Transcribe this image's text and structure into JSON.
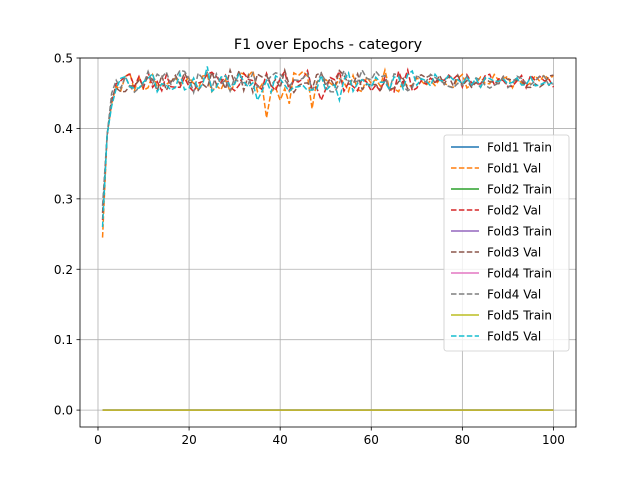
{
  "chart_data": {
    "type": "line",
    "title": "F1 over Epochs - category",
    "xlabel": "",
    "ylabel": "",
    "xlim": [
      -3.95,
      104.95
    ],
    "ylim": [
      -0.024,
      0.5
    ],
    "xticks": [
      0,
      20,
      40,
      60,
      80,
      100
    ],
    "yticks": [
      0.0,
      0.1,
      0.2,
      0.3,
      0.4,
      0.5
    ],
    "xtick_labels": [
      "0",
      "20",
      "40",
      "60",
      "80",
      "100"
    ],
    "ytick_labels": [
      "0.0",
      "0.1",
      "0.2",
      "0.3",
      "0.4",
      "0.5"
    ],
    "grid": true,
    "legend_position": "center-right",
    "series": [
      {
        "name": "Fold1 Train",
        "color": "#1f77b4",
        "dash": "solid",
        "kind": "train",
        "value": 0.0
      },
      {
        "name": "Fold1 Val",
        "color": "#ff7f0e",
        "dash": "dashed",
        "kind": "val",
        "seed": 11,
        "start": 0.245,
        "dips": [
          [
            37,
            0.415
          ],
          [
            40,
            0.44
          ],
          [
            42,
            0.435
          ],
          [
            47,
            0.428
          ]
        ]
      },
      {
        "name": "Fold2 Train",
        "color": "#2ca02c",
        "dash": "solid",
        "kind": "train",
        "value": 0.0
      },
      {
        "name": "Fold2 Val",
        "color": "#d62728",
        "dash": "dashed",
        "kind": "val",
        "seed": 23,
        "start": 0.27,
        "dips": [
          [
            49,
            0.44
          ]
        ]
      },
      {
        "name": "Fold3 Train",
        "color": "#9467bd",
        "dash": "solid",
        "kind": "train",
        "value": 0.0
      },
      {
        "name": "Fold3 Val",
        "color": "#8c564b",
        "dash": "dashed",
        "kind": "val",
        "seed": 37,
        "start": 0.28,
        "dips": []
      },
      {
        "name": "Fold4 Train",
        "color": "#e377c2",
        "dash": "solid",
        "kind": "train",
        "value": 0.0
      },
      {
        "name": "Fold4 Val",
        "color": "#7f7f7f",
        "dash": "dashed",
        "kind": "val",
        "seed": 41,
        "start": 0.29,
        "dips": []
      },
      {
        "name": "Fold5 Train",
        "color": "#bcbd22",
        "dash": "solid",
        "kind": "train",
        "value": 0.0
      },
      {
        "name": "Fold5 Val",
        "color": "#17becf",
        "dash": "dashed",
        "kind": "val",
        "seed": 53,
        "start": 0.26,
        "dips": [
          [
            24,
            0.488
          ],
          [
            35,
            0.44
          ],
          [
            53,
            0.44
          ]
        ]
      }
    ],
    "x_range": [
      1,
      100
    ]
  }
}
